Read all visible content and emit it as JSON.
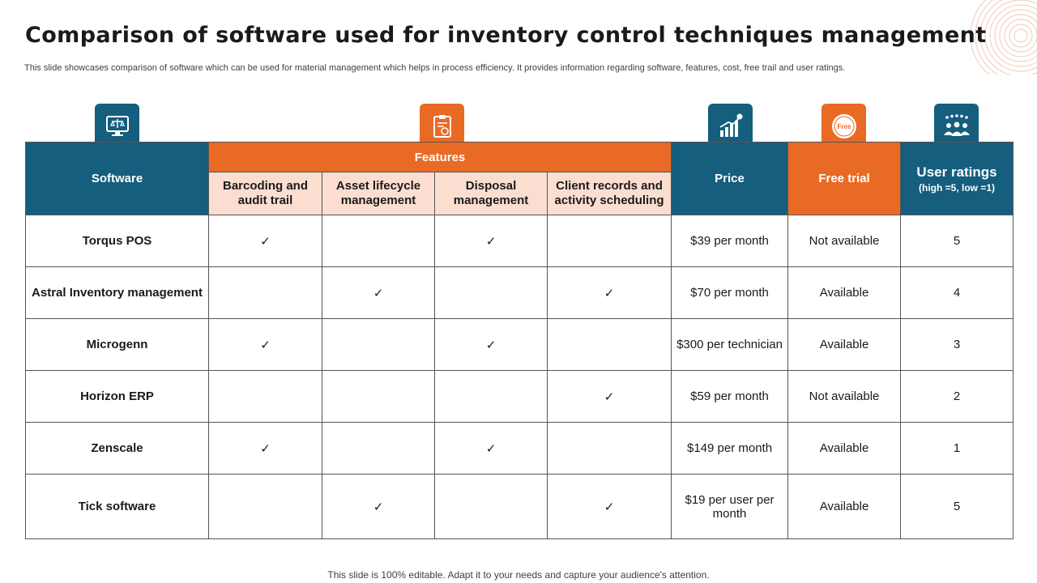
{
  "title": "Comparison of software used for inventory control techniques management",
  "subtitle": "This slide showcases comparison of software which can be used for material management which helps in process efficiency. It provides information regarding software, features, cost, free trail and user ratings.",
  "icons": {
    "software": "monitor-icon",
    "features": "checklist-icon",
    "price": "growth-chart-icon",
    "free_trial": "free-badge-icon",
    "free_badge_text": "Free",
    "user_ratings": "users-rating-icon"
  },
  "colors": {
    "blue": "#155e7e",
    "orange": "#e96a25",
    "light_orange": "#fbded0"
  },
  "headers": {
    "software": "Software",
    "features": "Features",
    "price": "Price",
    "free_trial": "Free trial",
    "user_ratings": "User ratings",
    "user_ratings_scale": "(high =5, low =1)",
    "feature_columns": [
      "Barcoding and audit trail",
      "Asset lifecycle management",
      "Disposal management",
      "Client records and activity scheduling"
    ]
  },
  "check_symbol": "✓",
  "rows": [
    {
      "software": "Torqus POS",
      "features": [
        true,
        false,
        true,
        false
      ],
      "price": "$39 per month",
      "free_trial": "Not available",
      "rating": "5"
    },
    {
      "software": "Astral Inventory management",
      "features": [
        false,
        true,
        false,
        true
      ],
      "price": "$70 per month",
      "free_trial": "Available",
      "rating": "4"
    },
    {
      "software": "Microgenn",
      "features": [
        true,
        false,
        true,
        false
      ],
      "price": "$300 per technician",
      "free_trial": "Available",
      "rating": "3"
    },
    {
      "software": "Horizon ERP",
      "features": [
        false,
        false,
        false,
        true
      ],
      "price": "$59 per month",
      "free_trial": "Not available",
      "rating": "2"
    },
    {
      "software": "Zenscale",
      "features": [
        true,
        false,
        true,
        false
      ],
      "price": "$149 per month",
      "free_trial": "Available",
      "rating": "1"
    },
    {
      "software": "Tick software",
      "features": [
        false,
        true,
        false,
        true
      ],
      "price": "$19 per user per month",
      "free_trial": "Available",
      "rating": "5"
    }
  ],
  "footer": "This slide is 100% editable. Adapt it to your needs and capture your audience's attention."
}
